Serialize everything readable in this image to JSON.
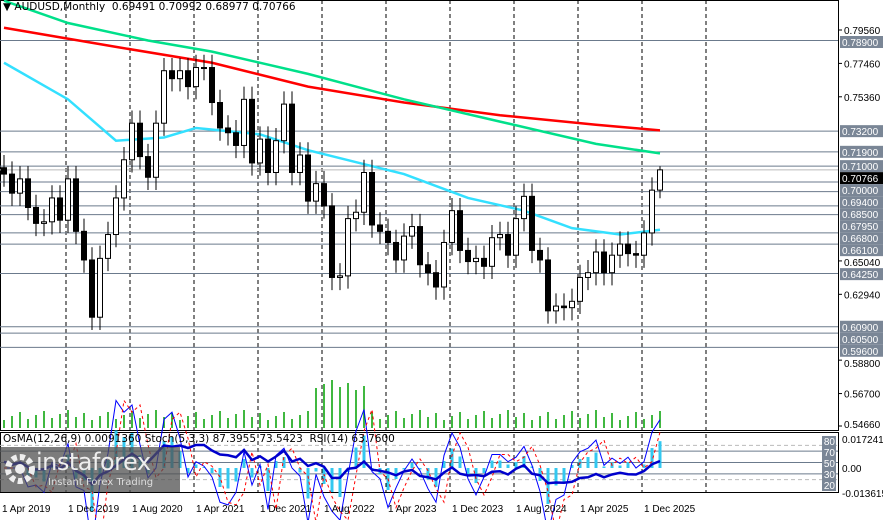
{
  "header": {
    "symbol_label": "AUDUSD,Monthly",
    "open": "0.69491",
    "high": "0.70992",
    "low": "0.68977",
    "close": "0.70766"
  },
  "indicator_header": {
    "osma": "OsMA(12,26,9) 0.0091360",
    "stoch": "Stoch(5,3,3) 87.3955 73.5423",
    "rsi": "RSI(14) 63.7600"
  },
  "logo": {
    "name": "instaforex",
    "tagline": "Instant Forex Trading"
  },
  "colors": {
    "bull": "#ffffff",
    "bear": "#000000",
    "ma_red": "#ff0000",
    "ma_green": "#00e08a",
    "ma_cyan": "#33e0ff",
    "volume": "#00a000",
    "osma": "#33c8f0",
    "stoch_main": "#0000ff",
    "stoch_signal": "#ff0000",
    "rsi": "#0000cc",
    "level_label_bg": "#7a8696"
  },
  "chart_data": {
    "type": "candlestick",
    "timeframe": "Monthly",
    "start_month": "2019-04",
    "closes": [
      0.705,
      0.693,
      0.702,
      0.684,
      0.674,
      0.675,
      0.69,
      0.676,
      0.702,
      0.669,
      0.651,
      0.615,
      0.652,
      0.667,
      0.69,
      0.714,
      0.737,
      0.716,
      0.703,
      0.737,
      0.77,
      0.765,
      0.77,
      0.76,
      0.772,
      0.772,
      0.75,
      0.734,
      0.731,
      0.723,
      0.752,
      0.712,
      0.727,
      0.706,
      0.726,
      0.749,
      0.706,
      0.717,
      0.688,
      0.699,
      0.685,
      0.64,
      0.641,
      0.677,
      0.681,
      0.706,
      0.673,
      0.669,
      0.662,
      0.651,
      0.666,
      0.672,
      0.648,
      0.643,
      0.634,
      0.662,
      0.682,
      0.657,
      0.65,
      0.652,
      0.647,
      0.665,
      0.667,
      0.654,
      0.677,
      0.691,
      0.657,
      0.651,
      0.619,
      0.622,
      0.621,
      0.625,
      0.64,
      0.643,
      0.656,
      0.643,
      0.654,
      0.661,
      0.655,
      0.654,
      0.668,
      0.6949,
      0.70766
    ],
    "last_candle": {
      "open": 0.69491,
      "high": 0.70992,
      "low": 0.68977,
      "close": 0.70766
    },
    "moving_averages": [
      {
        "color": "#ff0000",
        "points": [
          [
            "2019-04",
            0.797
          ],
          [
            "2020-06",
            0.785
          ],
          [
            "2021-06",
            0.775
          ],
          [
            "2022-06",
            0.76
          ],
          [
            "2023-06",
            0.75
          ],
          [
            "2024-06",
            0.742
          ],
          [
            "2025-06",
            0.736
          ],
          [
            "2026-02",
            0.7325
          ]
        ]
      },
      {
        "color": "#00e08a",
        "points": [
          [
            "2019-04",
            0.814
          ],
          [
            "2019-12",
            0.8
          ],
          [
            "2020-10",
            0.789
          ],
          [
            "2021-06",
            0.782
          ],
          [
            "2022-06",
            0.768
          ],
          [
            "2023-06",
            0.752
          ],
          [
            "2024-06",
            0.738
          ],
          [
            "2025-06",
            0.724
          ],
          [
            "2026-02",
            0.718
          ]
        ]
      },
      {
        "color": "#33e0ff",
        "points": [
          [
            "2019-04",
            0.775
          ],
          [
            "2019-12",
            0.752
          ],
          [
            "2020-06",
            0.726
          ],
          [
            "2020-12",
            0.728
          ],
          [
            "2021-04",
            0.734
          ],
          [
            "2021-12",
            0.73
          ],
          [
            "2022-06",
            0.72
          ],
          [
            "2023-06",
            0.705
          ],
          [
            "2024-02",
            0.69
          ],
          [
            "2024-09",
            0.682
          ],
          [
            "2025-03",
            0.671
          ],
          [
            "2025-09",
            0.667
          ],
          [
            "2026-02",
            0.67
          ]
        ]
      }
    ],
    "price_axis_ticks": [
      "0.79560",
      "0.77460",
      "0.75360",
      "0.65040",
      "0.62940",
      "0.58800",
      "0.56700",
      "0.54660"
    ],
    "level_labels": [
      "0.78900",
      "0.73200",
      "0.71900",
      "0.71000",
      "0.70000",
      "0.69400",
      "0.68500",
      "0.67950",
      "0.66800",
      "0.66100",
      "0.64250",
      "0.60900",
      "0.60500",
      "0.59600"
    ],
    "current_price": "0.70766",
    "y_range": [
      0.5466,
      0.7956
    ],
    "time_axis_labels": [
      "1 Apr 2019",
      "1 Dec 2019",
      "1 Aug 2020",
      "1 Apr 2021",
      "1 Dec 2021",
      "1 Aug 2022",
      "1 Apr 2023",
      "1 Dec 2023",
      "1 Aug 2024",
      "1 Apr 2025",
      "1 Dec 2025"
    ],
    "indicator_axis": {
      "max": "0.017241",
      "min": "-0.013615",
      "zero": "0.00",
      "levels": [
        "80",
        "70",
        "50",
        "30",
        "20"
      ]
    }
  }
}
